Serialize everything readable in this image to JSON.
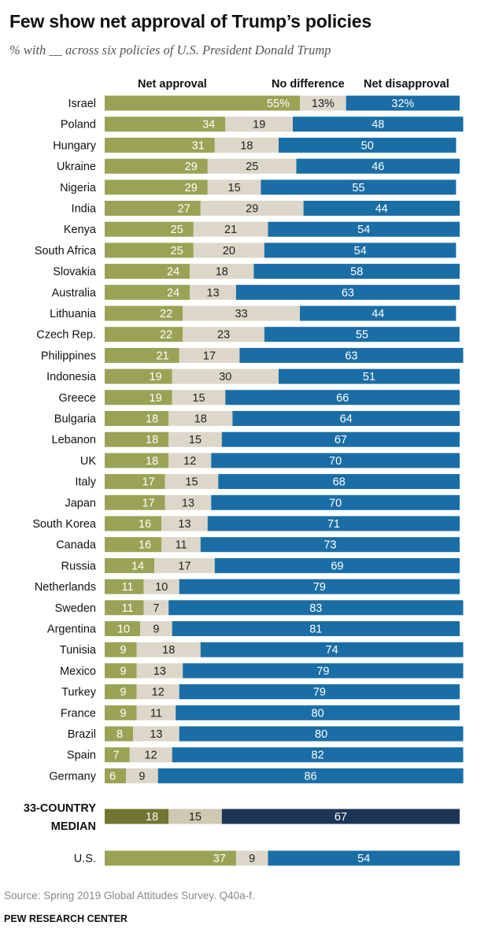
{
  "title": "Few show net approval of Trump’s policies",
  "subtitle": "% with __ across six policies of U.S. President Donald Trump",
  "source": "Source: Spring 2019 Global Attitudes Survey. Q40a-f.",
  "credit": "PEW RESEARCH CENTER",
  "colors": {
    "approval": "#9aa355",
    "no_difference": "#dcd7c8",
    "disapproval": "#1a6ea5",
    "median_approval": "#6f7632",
    "median_no_difference": "#d0c8b2",
    "median_disapproval": "#1d3557"
  },
  "chart_data": {
    "type": "bar",
    "stacked": true,
    "orientation": "horizontal",
    "series_labels": [
      "Net approval",
      "No difference",
      "Net disapproval"
    ],
    "first_row_suffix": "%",
    "rows": [
      {
        "country": "Israel",
        "values": [
          55,
          13,
          32
        ]
      },
      {
        "country": "Poland",
        "values": [
          34,
          19,
          48
        ]
      },
      {
        "country": "Hungary",
        "values": [
          31,
          18,
          50
        ]
      },
      {
        "country": "Ukraine",
        "values": [
          29,
          25,
          46
        ]
      },
      {
        "country": "Nigeria",
        "values": [
          29,
          15,
          55
        ]
      },
      {
        "country": "India",
        "values": [
          27,
          29,
          44
        ]
      },
      {
        "country": "Kenya",
        "values": [
          25,
          21,
          54
        ]
      },
      {
        "country": "South Africa",
        "values": [
          25,
          20,
          54
        ]
      },
      {
        "country": "Slovakia",
        "values": [
          24,
          18,
          58
        ]
      },
      {
        "country": "Australia",
        "values": [
          24,
          13,
          63
        ]
      },
      {
        "country": "Lithuania",
        "values": [
          22,
          33,
          44
        ]
      },
      {
        "country": "Czech Rep.",
        "values": [
          22,
          23,
          55
        ]
      },
      {
        "country": "Philippines",
        "values": [
          21,
          17,
          63
        ]
      },
      {
        "country": "Indonesia",
        "values": [
          19,
          30,
          51
        ]
      },
      {
        "country": "Greece",
        "values": [
          19,
          15,
          66
        ]
      },
      {
        "country": "Bulgaria",
        "values": [
          18,
          18,
          64
        ]
      },
      {
        "country": "Lebanon",
        "values": [
          18,
          15,
          67
        ]
      },
      {
        "country": "UK",
        "values": [
          18,
          12,
          70
        ]
      },
      {
        "country": "Italy",
        "values": [
          17,
          15,
          68
        ]
      },
      {
        "country": "Japan",
        "values": [
          17,
          13,
          70
        ]
      },
      {
        "country": "South Korea",
        "values": [
          16,
          13,
          71
        ]
      },
      {
        "country": "Canada",
        "values": [
          16,
          11,
          73
        ]
      },
      {
        "country": "Russia",
        "values": [
          14,
          17,
          69
        ]
      },
      {
        "country": "Netherlands",
        "values": [
          11,
          10,
          79
        ]
      },
      {
        "country": "Sweden",
        "values": [
          11,
          7,
          83
        ]
      },
      {
        "country": "Argentina",
        "values": [
          10,
          9,
          81
        ]
      },
      {
        "country": "Tunisia",
        "values": [
          9,
          18,
          74
        ]
      },
      {
        "country": "Mexico",
        "values": [
          9,
          13,
          79
        ]
      },
      {
        "country": "Turkey",
        "values": [
          9,
          12,
          79
        ]
      },
      {
        "country": "France",
        "values": [
          9,
          11,
          80
        ]
      },
      {
        "country": "Brazil",
        "values": [
          8,
          13,
          80
        ]
      },
      {
        "country": "Spain",
        "values": [
          7,
          12,
          82
        ]
      },
      {
        "country": "Germany",
        "values": [
          6,
          9,
          86
        ]
      }
    ],
    "median": {
      "label_lines": [
        "33-COUNTRY",
        "MEDIAN"
      ],
      "values": [
        18,
        15,
        67
      ]
    },
    "us": {
      "country": "U.S.",
      "values": [
        37,
        9,
        54
      ]
    }
  }
}
